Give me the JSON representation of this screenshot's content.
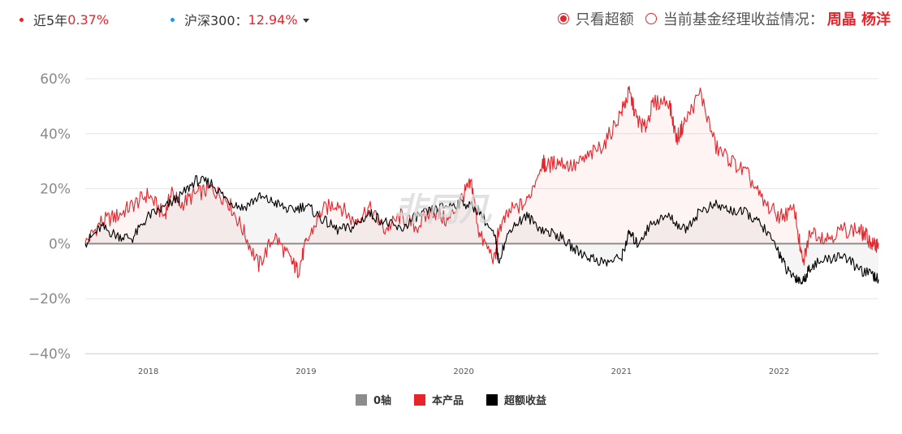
{
  "header": {
    "metric1": {
      "label": "近5年",
      "value": "0.37%",
      "color": "#e8242b"
    },
    "metric2": {
      "label": "沪深300：",
      "value": "12.94%",
      "color": "#2196f3"
    },
    "toggle_label": "只看超额",
    "manager_label": "当前基金经理收益情况：",
    "managers": "周晶 杨洋"
  },
  "watermark": "非同凡",
  "legend": [
    {
      "label": "0轴",
      "color": "#8c8c8c"
    },
    {
      "label": "本产品",
      "color": "#e8242b"
    },
    {
      "label": "超额收益",
      "color": "#000000"
    }
  ],
  "chart_data": {
    "type": "line",
    "y_ticks": [
      "60%",
      "40%",
      "20%",
      "0%",
      "−20%",
      "−40%"
    ],
    "y_tick_values": [
      60,
      40,
      20,
      0,
      -20,
      -40
    ],
    "ylim": [
      -40,
      60
    ],
    "x_ticks": [
      "2018",
      "2019",
      "2020",
      "2021",
      "2022"
    ],
    "x_tick_values": [
      2018.0,
      2019.0,
      2020.0,
      2021.0,
      2022.0
    ],
    "xlim": [
      2017.6,
      2022.63
    ],
    "grid": true,
    "legend_position": "bottom",
    "series": [
      {
        "name": "0轴",
        "color": "#8c8c8c",
        "x": [
          2017.6,
          2022.63
        ],
        "y": [
          0,
          0
        ]
      },
      {
        "name": "本产品",
        "color": "#e8242b",
        "x": [
          2017.6,
          2017.7,
          2017.8,
          2017.9,
          2018.0,
          2018.1,
          2018.15,
          2018.2,
          2018.3,
          2018.4,
          2018.5,
          2018.6,
          2018.7,
          2018.8,
          2018.9,
          2018.95,
          2019.0,
          2019.1,
          2019.2,
          2019.3,
          2019.4,
          2019.5,
          2019.6,
          2019.7,
          2019.8,
          2019.9,
          2020.0,
          2020.05,
          2020.1,
          2020.2,
          2020.22,
          2020.3,
          2020.4,
          2020.5,
          2020.52,
          2020.6,
          2020.7,
          2020.8,
          2020.9,
          2021.0,
          2021.05,
          2021.1,
          2021.15,
          2021.2,
          2021.3,
          2021.35,
          2021.4,
          2021.5,
          2021.6,
          2021.7,
          2021.8,
          2021.9,
          2022.0,
          2022.1,
          2022.15,
          2022.2,
          2022.3,
          2022.4,
          2022.5,
          2022.55,
          2022.6,
          2022.63
        ],
        "y": [
          0,
          8,
          10,
          14,
          18,
          10,
          19,
          14,
          18,
          20,
          16,
          5,
          -8,
          3,
          -6,
          -10,
          0,
          12,
          15,
          8,
          13,
          5,
          10,
          6,
          12,
          8,
          18,
          22,
          3,
          -6,
          5,
          12,
          15,
          30,
          28,
          30,
          28,
          32,
          37,
          48,
          55,
          45,
          42,
          51,
          52,
          38,
          44,
          55,
          35,
          30,
          25,
          15,
          10,
          12,
          -8,
          5,
          2,
          5,
          5,
          3,
          -1,
          0.37
        ]
      },
      {
        "name": "超额收益",
        "color": "#000000",
        "x": [
          2017.6,
          2017.7,
          2017.8,
          2017.9,
          2018.0,
          2018.1,
          2018.2,
          2018.3,
          2018.4,
          2018.5,
          2018.6,
          2018.7,
          2018.8,
          2018.9,
          2019.0,
          2019.1,
          2019.2,
          2019.3,
          2019.4,
          2019.5,
          2019.6,
          2019.7,
          2019.8,
          2019.9,
          2020.0,
          2020.1,
          2020.2,
          2020.22,
          2020.3,
          2020.4,
          2020.5,
          2020.6,
          2020.7,
          2020.8,
          2020.9,
          2021.0,
          2021.05,
          2021.1,
          2021.2,
          2021.3,
          2021.4,
          2021.5,
          2021.6,
          2021.7,
          2021.8,
          2021.9,
          2022.0,
          2022.05,
          2022.1,
          2022.15,
          2022.2,
          2022.3,
          2022.4,
          2022.5,
          2022.6,
          2022.63
        ],
        "y": [
          0,
          6,
          3,
          2,
          10,
          13,
          17,
          23,
          22,
          16,
          13,
          17,
          15,
          12,
          14,
          9,
          5,
          6,
          11,
          8,
          5,
          10,
          12,
          14,
          15,
          12,
          2,
          -6,
          6,
          10,
          5,
          3,
          -2,
          -5,
          -7,
          -5,
          4,
          0,
          8,
          10,
          5,
          12,
          14,
          12,
          11,
          6,
          -3,
          -10,
          -12,
          -14,
          -8,
          -6,
          -4,
          -9,
          -12,
          -13
        ]
      }
    ]
  }
}
